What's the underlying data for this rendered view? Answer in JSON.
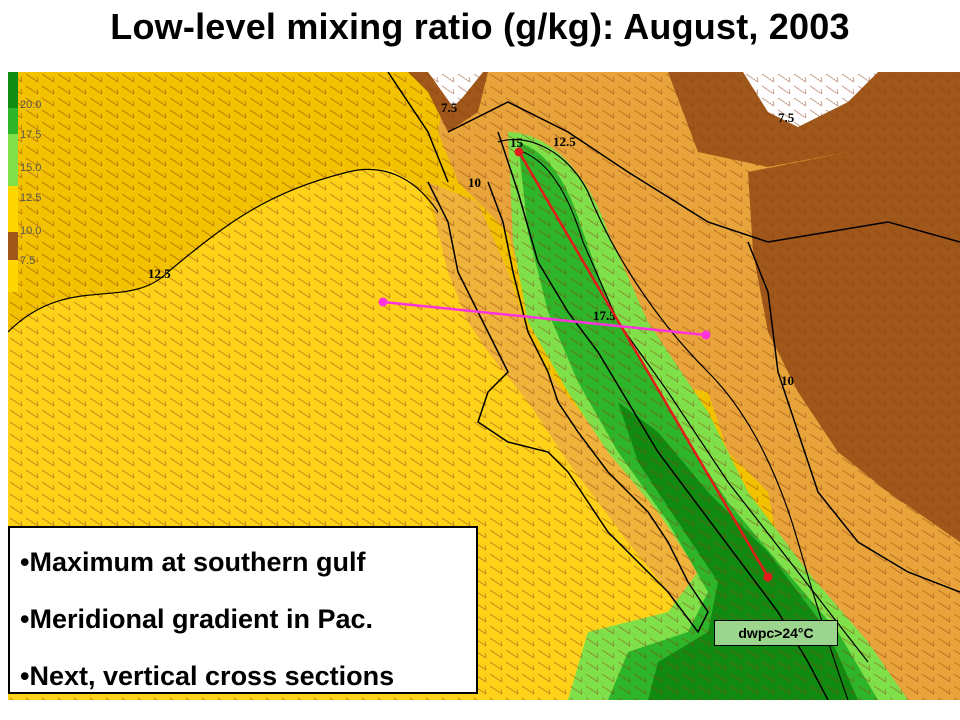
{
  "title": "Low-level mixing ratio (g/kg): August, 2003",
  "legend": {
    "levels": [
      "20.0",
      "17.5",
      "15.0",
      "12.5",
      "10.0",
      "7.5"
    ],
    "colors": [
      "#118a11",
      "#2fb52a",
      "#7fe04a",
      "#ffd700",
      "#e8a33a",
      "#a0581a"
    ]
  },
  "contour_labels": {
    "west": "12.5",
    "north_left": "7.5",
    "north_right": "7.5",
    "baja": "10",
    "gulf_top": "15",
    "gulf_top2": "12.5",
    "gulf_mid": "17.5",
    "east": "10"
  },
  "cross_sections": {
    "meridional_color": "#e21b1b",
    "zonal_color": "#ff33dd"
  },
  "note": "dwpc>24°C",
  "bullets": [
    "•Maximum at southern gulf",
    "•Meridional gradient in Pac.",
    "•Next, vertical cross sections"
  ]
}
